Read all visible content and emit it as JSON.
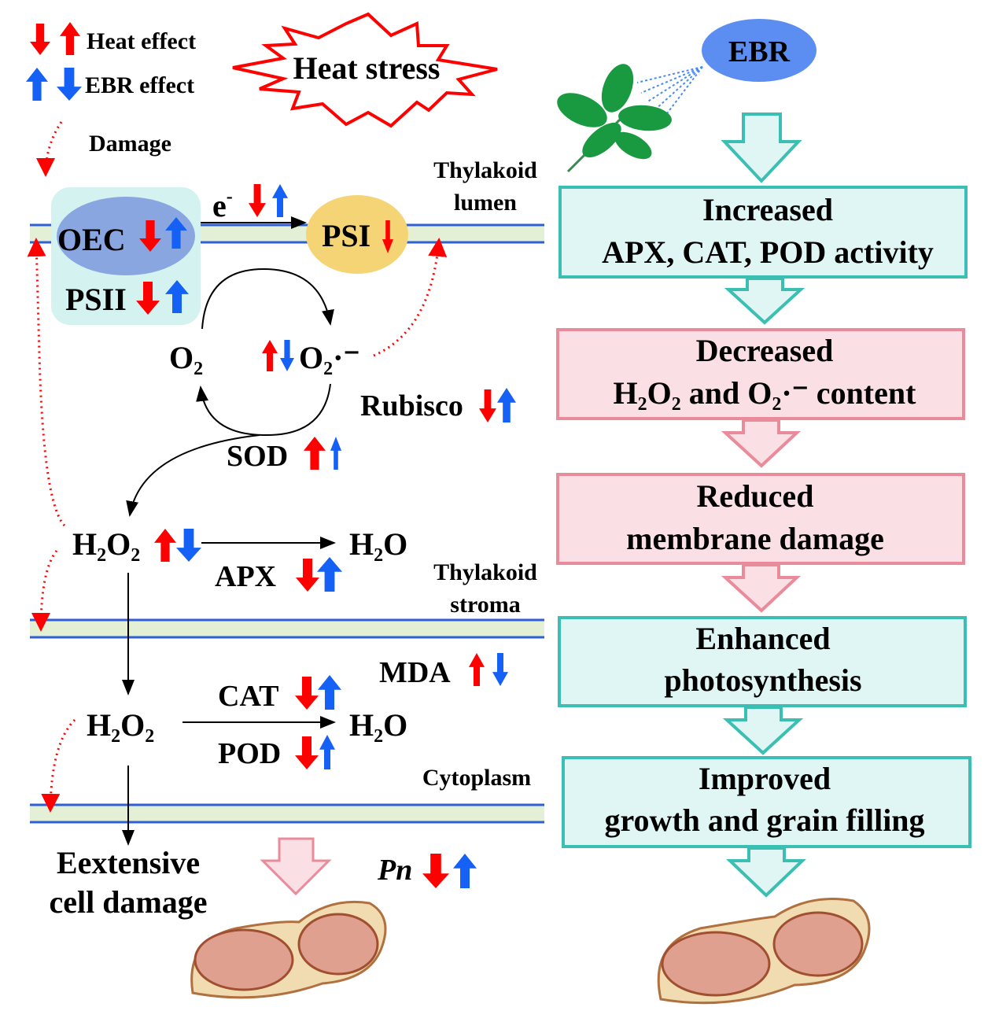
{
  "legend": {
    "heat": "Heat effect",
    "ebr": "EBR effect"
  },
  "colors": {
    "heat": "#ff0000",
    "ebr": "#1560f5",
    "teal_border": "#3cbfb3",
    "teal_fill": "#dff6f4",
    "pink_border": "#e98b9b",
    "pink_fill": "#fadfe4",
    "membrane": "#e4f0d6",
    "membrane_line": "#2e5fd6"
  },
  "stress": "Heat stress",
  "ebr": "EBR",
  "damage": "Damage",
  "left": {
    "electron": "e",
    "electron_sup": "-",
    "oec": "OEC",
    "psii": "PSII",
    "psi": "PSI",
    "thylakoid_lumen": [
      "Thylakoid",
      "lumen"
    ],
    "o2": "O₂",
    "superoxide": "O₂·⁻",
    "rubisco": "Rubisco",
    "sod": "SOD",
    "h2o2_chloroplast": "H₂O₂",
    "h2o_chloroplast": "H₂O",
    "apx": "APX",
    "thylakoid_stroma": [
      "Thylakoid",
      "stroma"
    ],
    "mda": "MDA",
    "cat": "CAT",
    "pod": "POD",
    "h2o2_cytoplasm": "H₂O₂",
    "h2o_cytoplasm": "H₂O",
    "cytoplasm": "Cytoplasm",
    "cell_damage": [
      "Eextensive",
      "cell damage"
    ],
    "pn": "Pn"
  },
  "flow": [
    {
      "lines": [
        "Increased",
        "APX, CAT, POD activity"
      ],
      "tone": "teal"
    },
    {
      "lines": [
        "Decreased",
        "H₂O₂ and O₂·⁻ content"
      ],
      "tone": "pink"
    },
    {
      "lines": [
        "Reduced",
        "membrane damage"
      ],
      "tone": "pink"
    },
    {
      "lines": [
        "Enhanced",
        "photosynthesis"
      ],
      "tone": "teal"
    },
    {
      "lines": [
        "Improved",
        "growth and grain filling"
      ],
      "tone": "teal"
    }
  ]
}
